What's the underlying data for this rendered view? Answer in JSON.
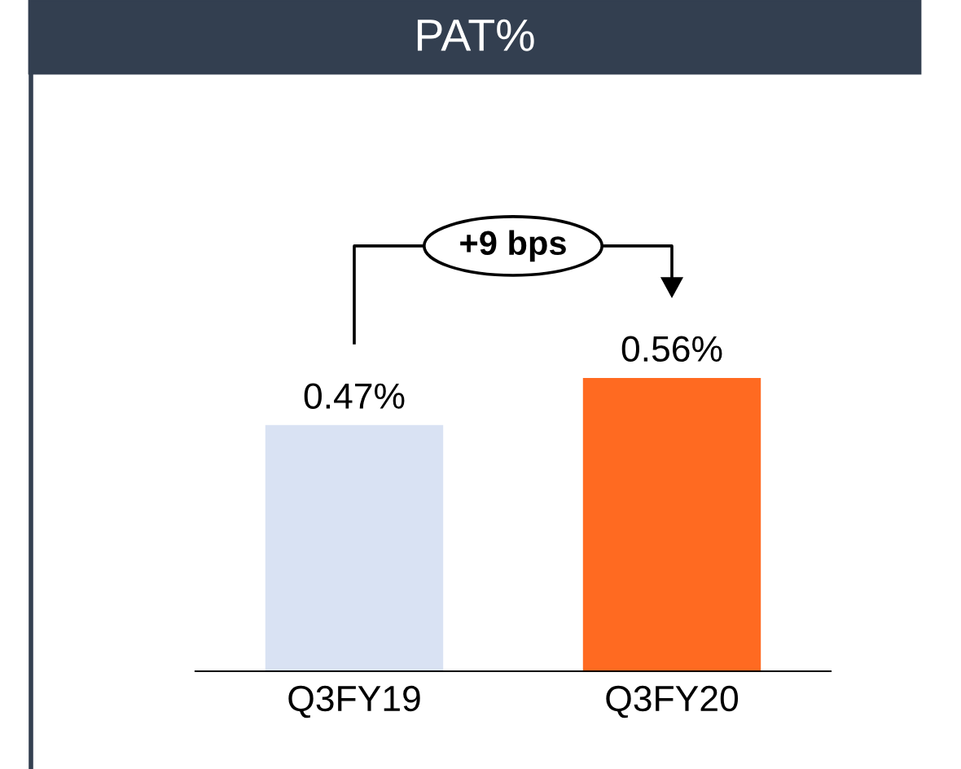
{
  "chart_data": {
    "type": "bar",
    "title": "PAT%",
    "categories": [
      "Q3FY19",
      "Q3FY20"
    ],
    "values": [
      0.47,
      0.56
    ],
    "colors": [
      "#d9e2f3",
      "#ff6a21"
    ],
    "value_labels": [
      "0.47%",
      "0.56%"
    ],
    "annotations": [
      "+9 bps"
    ]
  }
}
